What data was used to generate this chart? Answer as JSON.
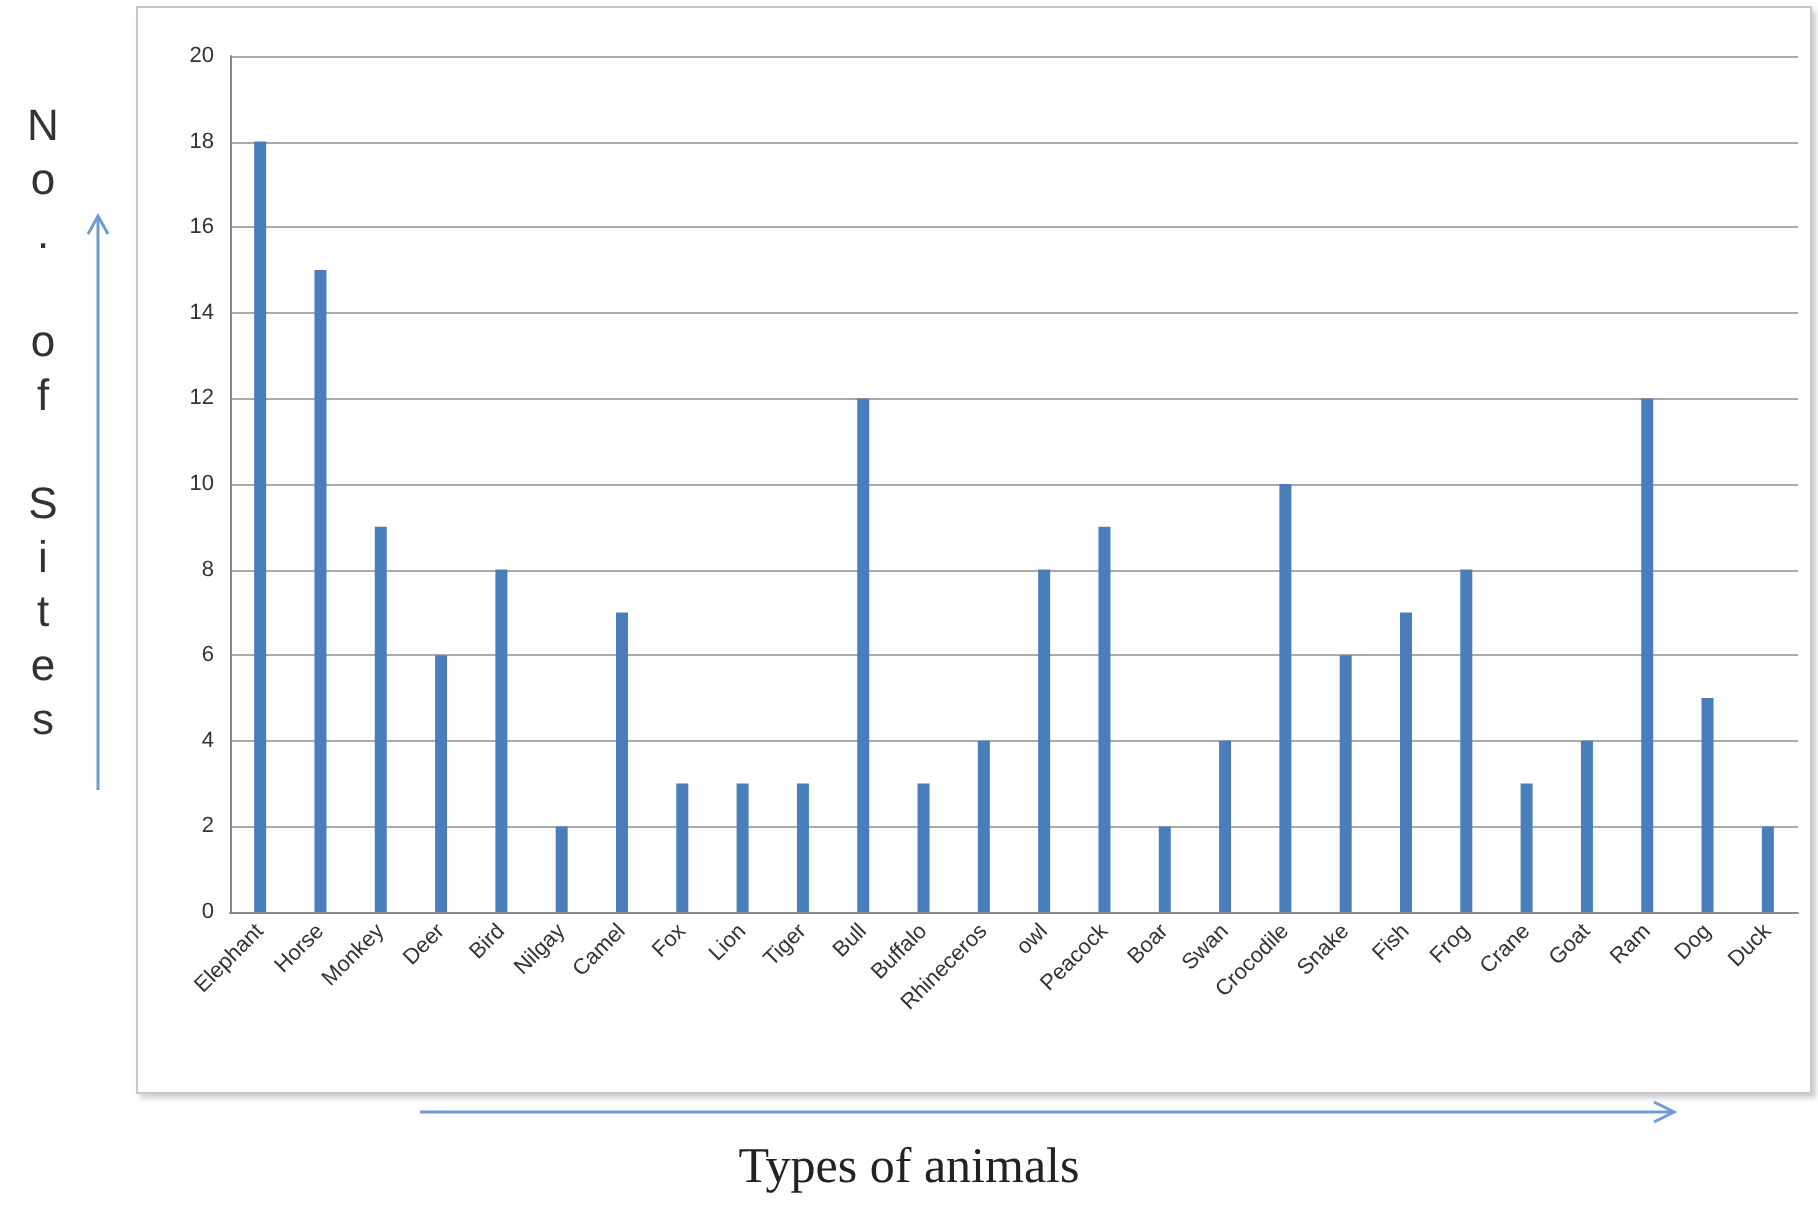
{
  "chart_data": {
    "type": "bar",
    "xlabel": "Types of animals",
    "ylabel": "No. of Sites",
    "categories": [
      "Elephant",
      "Horse",
      "Monkey",
      "Deer",
      "Bird",
      "Nilgay",
      "Camel",
      "Fox",
      "Lion",
      "Tiger",
      "Bull",
      "Buffalo",
      "Rhineceros",
      "owl",
      "Peacock",
      "Boar",
      "Swan",
      "Crocodile",
      "Snake",
      "Fish",
      "Frog",
      "Crane",
      "Goat",
      "Ram",
      "Dog",
      "Duck"
    ],
    "values": [
      18,
      15,
      9,
      6,
      8,
      2,
      7,
      3,
      3,
      3,
      12,
      3,
      4,
      8,
      9,
      2,
      4,
      10,
      6,
      7,
      8,
      3,
      4,
      12,
      5,
      2
    ],
    "color": "#4a7ebb",
    "ylim": [
      0,
      20
    ],
    "yticks": [
      0,
      2,
      4,
      6,
      8,
      10,
      12,
      14,
      16,
      18,
      20
    ],
    "grid": "y"
  }
}
